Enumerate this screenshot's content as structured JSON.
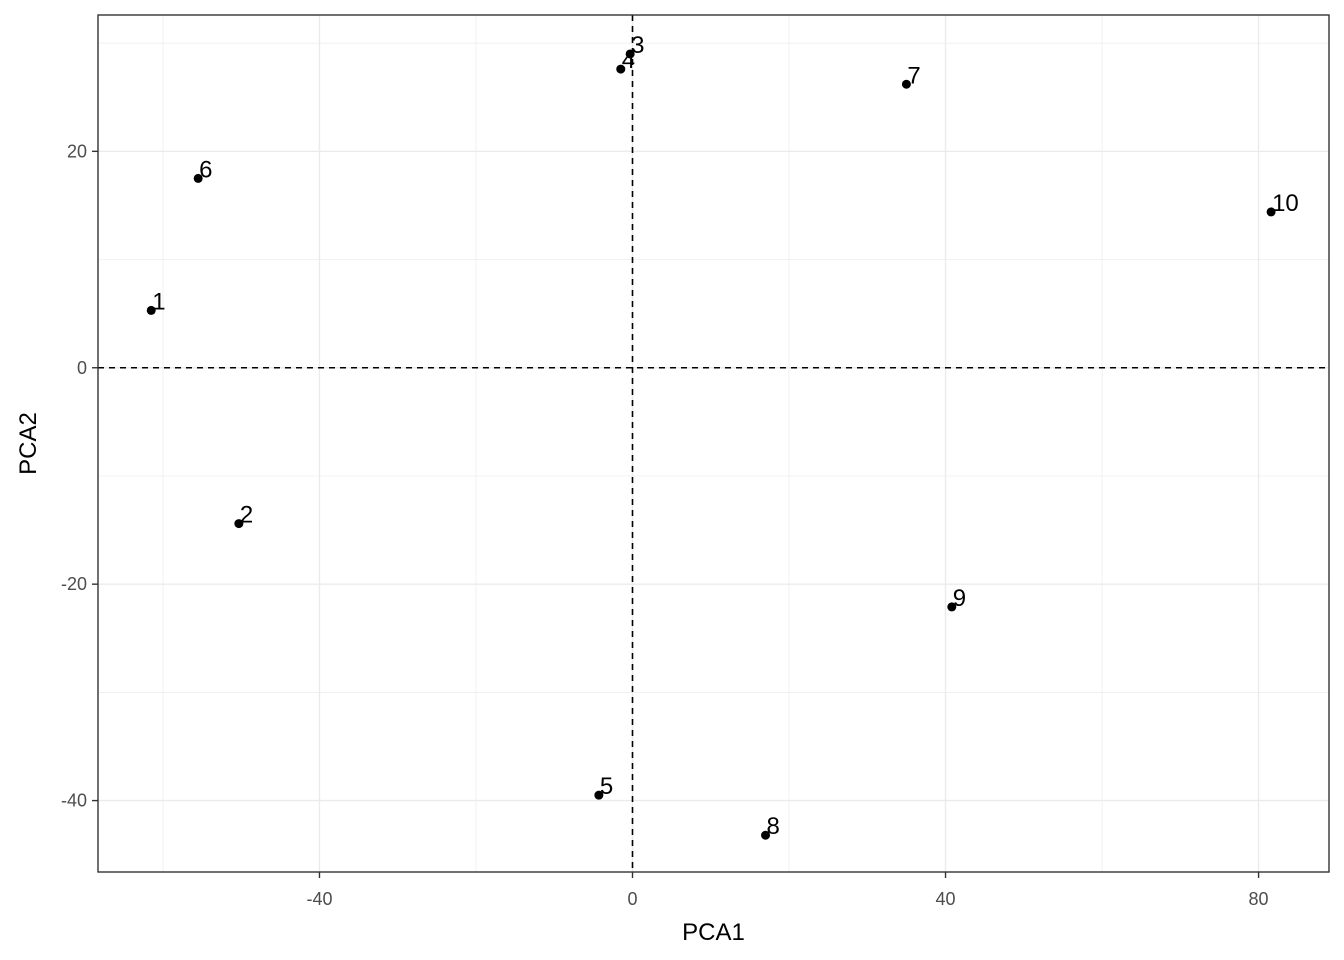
{
  "chart_data": {
    "type": "scatter",
    "xlabel": "PCA1",
    "ylabel": "PCA2",
    "xlim": [
      -68.3,
      89.0
    ],
    "ylim": [
      -46.6,
      32.6
    ],
    "x_ticks": [
      -40,
      0,
      40,
      80
    ],
    "x_tick_labels": [
      "-40",
      "0",
      "40",
      "80"
    ],
    "y_ticks": [
      -40,
      -20,
      0,
      20
    ],
    "y_tick_labels": [
      "-40",
      "-20",
      "0",
      "20"
    ],
    "grid": true,
    "reference_lines": {
      "x": 0,
      "y": 0,
      "style": "dashed"
    },
    "points": [
      {
        "label": "1",
        "x": -61.5,
        "y": 5.3
      },
      {
        "label": "2",
        "x": -50.3,
        "y": -14.4
      },
      {
        "label": "3",
        "x": -0.3,
        "y": 29.0
      },
      {
        "label": "4",
        "x": -1.5,
        "y": 27.6
      },
      {
        "label": "5",
        "x": -4.3,
        "y": -39.5
      },
      {
        "label": "6",
        "x": -55.5,
        "y": 17.5
      },
      {
        "label": "7",
        "x": 35.0,
        "y": 26.2
      },
      {
        "label": "8",
        "x": 17.0,
        "y": -43.2
      },
      {
        "label": "9",
        "x": 40.8,
        "y": -22.1
      },
      {
        "label": "10",
        "x": 81.6,
        "y": 14.4
      }
    ],
    "colors": {
      "point": "#000000",
      "grid": "#ebebeb",
      "panel_border": "#333333"
    }
  }
}
